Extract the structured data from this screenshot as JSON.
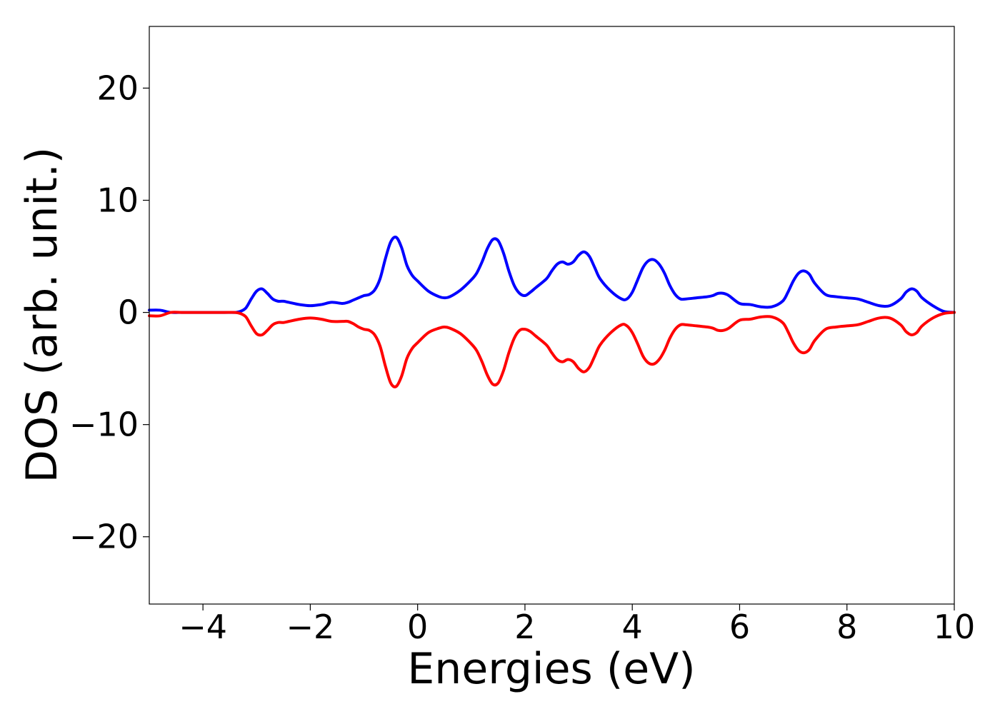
{
  "chart_data": {
    "type": "line",
    "title": "",
    "xlabel": "Energies (eV)",
    "ylabel": "DOS (arb. unit.)",
    "xlim": [
      -5,
      10
    ],
    "ylim": [
      -26,
      25.5
    ],
    "xticks": [
      -4,
      -2,
      0,
      2,
      4,
      6,
      8,
      10
    ],
    "xtick_labels": [
      "−4",
      "−2",
      "0",
      "2",
      "4",
      "6",
      "8",
      "10"
    ],
    "yticks": [
      -20,
      -10,
      0,
      10,
      20
    ],
    "ytick_labels": [
      "−20",
      "−10",
      "0",
      "10",
      "20"
    ],
    "grid": false,
    "legend": "none",
    "series": [
      {
        "color": "#0000ff",
        "x": [
          -5.0,
          -4.8,
          -4.6,
          -4.4,
          -4.2,
          -4.0,
          -3.8,
          -3.6,
          -3.4,
          -3.3,
          -3.2,
          -3.1,
          -3.0,
          -2.9,
          -2.8,
          -2.7,
          -2.6,
          -2.5,
          -2.4,
          -2.2,
          -2.0,
          -1.8,
          -1.6,
          -1.4,
          -1.3,
          -1.2,
          -1.1,
          -1.0,
          -0.9,
          -0.8,
          -0.7,
          -0.6,
          -0.5,
          -0.4,
          -0.3,
          -0.2,
          -0.1,
          0.0,
          0.2,
          0.4,
          0.5,
          0.6,
          0.8,
          1.0,
          1.1,
          1.2,
          1.3,
          1.4,
          1.5,
          1.6,
          1.7,
          1.8,
          1.9,
          2.0,
          2.1,
          2.2,
          2.4,
          2.5,
          2.6,
          2.7,
          2.8,
          2.9,
          3.0,
          3.1,
          3.2,
          3.3,
          3.4,
          3.6,
          3.8,
          3.9,
          4.0,
          4.1,
          4.2,
          4.3,
          4.4,
          4.5,
          4.6,
          4.7,
          4.8,
          4.9,
          5.0,
          5.2,
          5.4,
          5.5,
          5.6,
          5.7,
          5.8,
          6.0,
          6.2,
          6.4,
          6.6,
          6.8,
          6.9,
          7.0,
          7.1,
          7.2,
          7.3,
          7.4,
          7.6,
          7.8,
          8.0,
          8.2,
          8.4,
          8.6,
          8.8,
          9.0,
          9.1,
          9.2,
          9.3,
          9.4,
          9.6,
          9.8,
          10.0
        ],
        "y": [
          0.2,
          0.2,
          0.0,
          0.0,
          0.0,
          0.0,
          0.0,
          0.0,
          0.0,
          0.1,
          0.4,
          1.2,
          1.9,
          2.1,
          1.7,
          1.2,
          1.0,
          1.0,
          0.9,
          0.7,
          0.6,
          0.7,
          0.9,
          0.8,
          0.9,
          1.1,
          1.3,
          1.5,
          1.6,
          2.0,
          3.0,
          4.8,
          6.3,
          6.7,
          5.8,
          4.2,
          3.3,
          2.8,
          1.9,
          1.4,
          1.3,
          1.4,
          2.0,
          2.9,
          3.5,
          4.5,
          5.7,
          6.5,
          6.4,
          5.3,
          3.7,
          2.4,
          1.7,
          1.5,
          1.8,
          2.2,
          3.0,
          3.7,
          4.3,
          4.5,
          4.3,
          4.5,
          5.1,
          5.4,
          5.0,
          4.0,
          3.0,
          1.9,
          1.2,
          1.2,
          1.8,
          2.9,
          4.0,
          4.6,
          4.7,
          4.3,
          3.5,
          2.4,
          1.6,
          1.2,
          1.2,
          1.3,
          1.4,
          1.5,
          1.7,
          1.7,
          1.5,
          0.8,
          0.7,
          0.5,
          0.5,
          1.0,
          1.8,
          2.8,
          3.5,
          3.7,
          3.4,
          2.6,
          1.6,
          1.4,
          1.3,
          1.2,
          0.9,
          0.6,
          0.6,
          1.2,
          1.8,
          2.1,
          1.9,
          1.3,
          0.6,
          0.1,
          0.0
        ]
      },
      {
        "color": "#ff0000",
        "x": [
          -5.0,
          -4.8,
          -4.6,
          -4.4,
          -4.2,
          -4.0,
          -3.8,
          -3.6,
          -3.4,
          -3.3,
          -3.2,
          -3.1,
          -3.0,
          -2.9,
          -2.8,
          -2.7,
          -2.6,
          -2.5,
          -2.4,
          -2.2,
          -2.0,
          -1.8,
          -1.6,
          -1.4,
          -1.3,
          -1.2,
          -1.1,
          -1.0,
          -0.9,
          -0.8,
          -0.7,
          -0.6,
          -0.5,
          -0.4,
          -0.3,
          -0.2,
          -0.1,
          0.0,
          0.2,
          0.4,
          0.5,
          0.6,
          0.8,
          1.0,
          1.1,
          1.2,
          1.3,
          1.4,
          1.5,
          1.6,
          1.7,
          1.8,
          1.9,
          2.0,
          2.1,
          2.2,
          2.4,
          2.5,
          2.6,
          2.7,
          2.8,
          2.9,
          3.0,
          3.1,
          3.2,
          3.3,
          3.4,
          3.6,
          3.8,
          3.9,
          4.0,
          4.1,
          4.2,
          4.3,
          4.4,
          4.5,
          4.6,
          4.7,
          4.8,
          4.9,
          5.0,
          5.2,
          5.4,
          5.5,
          5.6,
          5.7,
          5.8,
          6.0,
          6.2,
          6.4,
          6.6,
          6.8,
          6.9,
          7.0,
          7.1,
          7.2,
          7.3,
          7.4,
          7.6,
          7.8,
          8.0,
          8.2,
          8.4,
          8.6,
          8.8,
          9.0,
          9.1,
          9.2,
          9.3,
          9.4,
          9.6,
          9.8,
          10.0
        ],
        "y": [
          -0.3,
          -0.3,
          0.0,
          0.0,
          0.0,
          0.0,
          0.0,
          0.0,
          0.0,
          -0.1,
          -0.4,
          -1.2,
          -1.9,
          -2.0,
          -1.6,
          -1.1,
          -0.9,
          -0.9,
          -0.8,
          -0.6,
          -0.5,
          -0.6,
          -0.8,
          -0.8,
          -0.8,
          -1.0,
          -1.3,
          -1.5,
          -1.6,
          -2.0,
          -3.0,
          -4.8,
          -6.3,
          -6.6,
          -5.7,
          -4.1,
          -3.2,
          -2.7,
          -1.8,
          -1.4,
          -1.3,
          -1.4,
          -1.9,
          -2.8,
          -3.4,
          -4.4,
          -5.6,
          -6.4,
          -6.3,
          -5.2,
          -3.6,
          -2.3,
          -1.6,
          -1.5,
          -1.7,
          -2.1,
          -2.9,
          -3.6,
          -4.2,
          -4.4,
          -4.2,
          -4.4,
          -5.0,
          -5.3,
          -4.9,
          -3.9,
          -2.9,
          -1.8,
          -1.1,
          -1.2,
          -1.8,
          -2.8,
          -3.9,
          -4.5,
          -4.6,
          -4.2,
          -3.4,
          -2.3,
          -1.5,
          -1.1,
          -1.1,
          -1.2,
          -1.3,
          -1.4,
          -1.6,
          -1.6,
          -1.4,
          -0.7,
          -0.6,
          -0.4,
          -0.4,
          -0.9,
          -1.7,
          -2.7,
          -3.4,
          -3.6,
          -3.3,
          -2.5,
          -1.5,
          -1.3,
          -1.2,
          -1.1,
          -0.8,
          -0.5,
          -0.5,
          -1.1,
          -1.7,
          -2.0,
          -1.8,
          -1.2,
          -0.5,
          -0.1,
          0.0
        ]
      }
    ]
  }
}
